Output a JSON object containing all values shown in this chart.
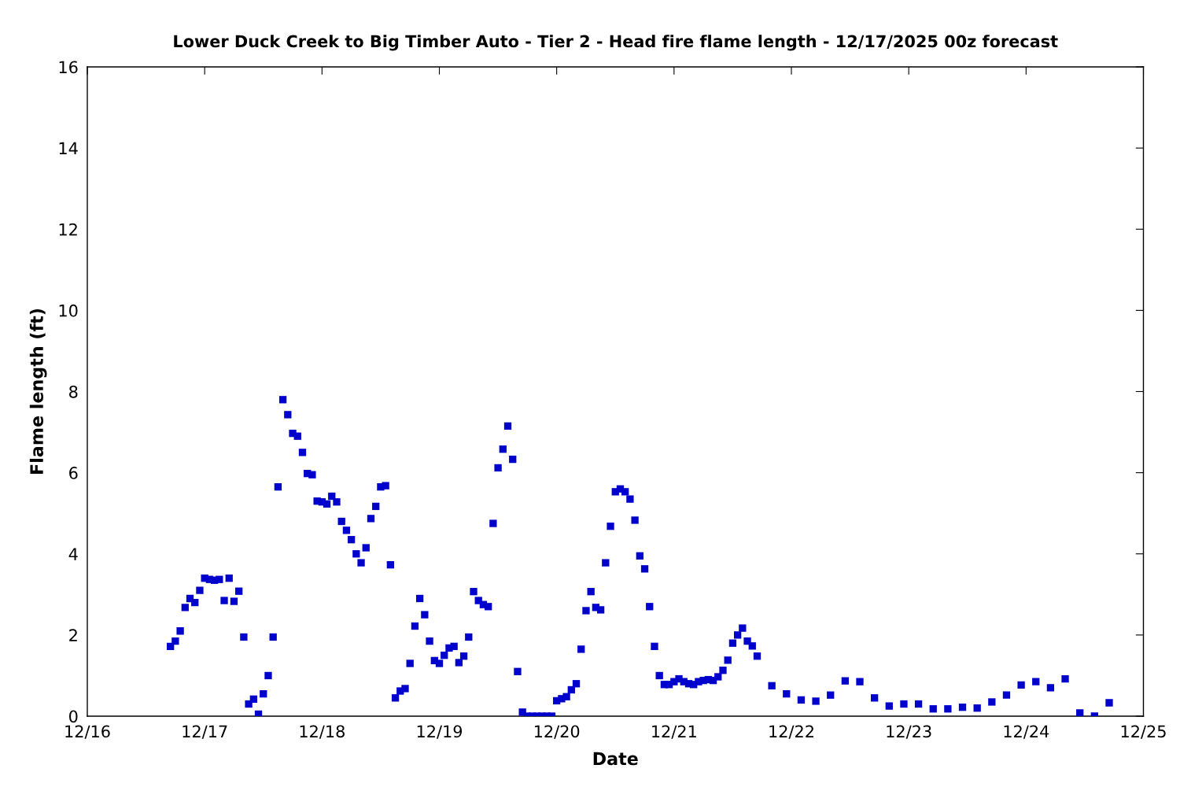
{
  "chart_data": {
    "type": "scatter",
    "title": "Lower Duck Creek to Big Timber Auto - Tier 2 - Head fire flame length - 12/17/2025 00z forecast",
    "xlabel": "Date",
    "ylabel": "Flame length (ft)",
    "marker": "square",
    "grid": false,
    "xlim": [
      "2025-12-16",
      "2025-12-25"
    ],
    "xticks": [
      {
        "value": "2025-12-16",
        "label": "12/16"
      },
      {
        "value": "2025-12-17",
        "label": "12/17"
      },
      {
        "value": "2025-12-18",
        "label": "12/18"
      },
      {
        "value": "2025-12-19",
        "label": "12/19"
      },
      {
        "value": "2025-12-20",
        "label": "12/20"
      },
      {
        "value": "2025-12-21",
        "label": "12/21"
      },
      {
        "value": "2025-12-22",
        "label": "12/22"
      },
      {
        "value": "2025-12-23",
        "label": "12/23"
      },
      {
        "value": "2025-12-24",
        "label": "12/24"
      },
      {
        "value": "2025-12-25",
        "label": "12/25"
      }
    ],
    "ylim": [
      0,
      16
    ],
    "yticks": [
      0,
      2,
      4,
      6,
      8,
      10,
      12,
      14,
      16
    ],
    "series": [
      {
        "color": "#0000cc",
        "x": [
          "2025-12-16T17:00",
          "2025-12-16T18:00",
          "2025-12-16T19:00",
          "2025-12-16T20:00",
          "2025-12-16T21:00",
          "2025-12-16T22:00",
          "2025-12-16T23:00",
          "2025-12-17T00:00",
          "2025-12-17T01:00",
          "2025-12-17T02:00",
          "2025-12-17T03:00",
          "2025-12-17T04:00",
          "2025-12-17T05:00",
          "2025-12-17T06:00",
          "2025-12-17T07:00",
          "2025-12-17T08:00",
          "2025-12-17T09:00",
          "2025-12-17T10:00",
          "2025-12-17T11:00",
          "2025-12-17T12:00",
          "2025-12-17T13:00",
          "2025-12-17T14:00",
          "2025-12-17T15:00",
          "2025-12-17T16:00",
          "2025-12-17T17:00",
          "2025-12-17T18:00",
          "2025-12-17T19:00",
          "2025-12-17T20:00",
          "2025-12-17T21:00",
          "2025-12-17T22:00",
          "2025-12-17T23:00",
          "2025-12-18T00:00",
          "2025-12-18T01:00",
          "2025-12-18T02:00",
          "2025-12-18T03:00",
          "2025-12-18T04:00",
          "2025-12-18T05:00",
          "2025-12-18T06:00",
          "2025-12-18T07:00",
          "2025-12-18T08:00",
          "2025-12-18T09:00",
          "2025-12-18T10:00",
          "2025-12-18T11:00",
          "2025-12-18T12:00",
          "2025-12-18T13:00",
          "2025-12-18T14:00",
          "2025-12-18T15:00",
          "2025-12-18T16:00",
          "2025-12-18T17:00",
          "2025-12-18T18:00",
          "2025-12-18T19:00",
          "2025-12-18T20:00",
          "2025-12-18T21:00",
          "2025-12-18T22:00",
          "2025-12-18T23:00",
          "2025-12-19T00:00",
          "2025-12-19T01:00",
          "2025-12-19T02:00",
          "2025-12-19T03:00",
          "2025-12-19T04:00",
          "2025-12-19T05:00",
          "2025-12-19T06:00",
          "2025-12-19T07:00",
          "2025-12-19T08:00",
          "2025-12-19T09:00",
          "2025-12-19T10:00",
          "2025-12-19T11:00",
          "2025-12-19T12:00",
          "2025-12-19T13:00",
          "2025-12-19T14:00",
          "2025-12-19T15:00",
          "2025-12-19T16:00",
          "2025-12-19T17:00",
          "2025-12-19T18:00",
          "2025-12-19T19:00",
          "2025-12-19T20:00",
          "2025-12-19T21:00",
          "2025-12-19T22:00",
          "2025-12-19T23:00",
          "2025-12-20T00:00",
          "2025-12-20T01:00",
          "2025-12-20T02:00",
          "2025-12-20T03:00",
          "2025-12-20T04:00",
          "2025-12-20T05:00",
          "2025-12-20T06:00",
          "2025-12-20T07:00",
          "2025-12-20T08:00",
          "2025-12-20T09:00",
          "2025-12-20T10:00",
          "2025-12-20T11:00",
          "2025-12-20T12:00",
          "2025-12-20T13:00",
          "2025-12-20T14:00",
          "2025-12-20T15:00",
          "2025-12-20T16:00",
          "2025-12-20T17:00",
          "2025-12-20T18:00",
          "2025-12-20T19:00",
          "2025-12-20T20:00",
          "2025-12-20T21:00",
          "2025-12-20T22:00",
          "2025-12-20T23:00",
          "2025-12-21T00:00",
          "2025-12-21T01:00",
          "2025-12-21T02:00",
          "2025-12-21T03:00",
          "2025-12-21T04:00",
          "2025-12-21T05:00",
          "2025-12-21T06:00",
          "2025-12-21T07:00",
          "2025-12-21T08:00",
          "2025-12-21T09:00",
          "2025-12-21T10:00",
          "2025-12-21T11:00",
          "2025-12-21T12:00",
          "2025-12-21T13:00",
          "2025-12-21T14:00",
          "2025-12-21T15:00",
          "2025-12-21T16:00",
          "2025-12-21T17:00",
          "2025-12-21T20:00",
          "2025-12-21T23:00",
          "2025-12-22T02:00",
          "2025-12-22T05:00",
          "2025-12-22T08:00",
          "2025-12-22T11:00",
          "2025-12-22T14:00",
          "2025-12-22T17:00",
          "2025-12-22T20:00",
          "2025-12-22T23:00",
          "2025-12-23T02:00",
          "2025-12-23T05:00",
          "2025-12-23T08:00",
          "2025-12-23T11:00",
          "2025-12-23T14:00",
          "2025-12-23T17:00",
          "2025-12-23T20:00",
          "2025-12-23T23:00",
          "2025-12-24T02:00",
          "2025-12-24T05:00",
          "2025-12-24T08:00",
          "2025-12-24T11:00",
          "2025-12-24T14:00",
          "2025-12-24T17:00"
        ],
        "values": [
          1.72,
          1.85,
          2.1,
          2.68,
          2.9,
          2.8,
          3.1,
          3.4,
          3.37,
          3.35,
          3.37,
          2.85,
          3.4,
          2.83,
          3.08,
          1.95,
          0.3,
          0.42,
          0.05,
          0.55,
          1.0,
          1.95,
          5.65,
          7.8,
          7.43,
          6.97,
          6.9,
          6.5,
          5.98,
          5.95,
          5.3,
          5.28,
          5.23,
          5.42,
          5.28,
          4.8,
          4.58,
          4.35,
          4.0,
          3.78,
          4.15,
          4.87,
          5.17,
          5.65,
          5.68,
          3.73,
          0.45,
          0.62,
          0.68,
          1.3,
          2.22,
          2.9,
          2.5,
          1.85,
          1.37,
          1.3,
          1.5,
          1.68,
          1.72,
          1.32,
          1.48,
          1.95,
          3.07,
          2.85,
          2.75,
          2.7,
          4.75,
          6.12,
          6.58,
          7.15,
          6.33,
          1.1,
          0.1,
          0,
          0,
          0,
          0,
          0,
          0,
          0.38,
          0.43,
          0.48,
          0.65,
          0.8,
          1.65,
          2.6,
          3.07,
          2.68,
          2.62,
          3.78,
          4.68,
          5.53,
          5.6,
          5.53,
          5.35,
          4.83,
          3.95,
          3.63,
          2.7,
          1.72,
          1.0,
          0.78,
          0.78,
          0.85,
          0.92,
          0.85,
          0.8,
          0.78,
          0.85,
          0.88,
          0.9,
          0.88,
          0.97,
          1.13,
          1.38,
          1.8,
          2.0,
          2.17,
          1.85,
          1.73,
          1.48,
          0.75,
          0.55,
          0.4,
          0.37,
          0.52,
          0.87,
          0.85,
          0.45,
          0.25,
          0.3,
          0.3,
          0.18,
          0.18,
          0.22,
          0.2,
          0.35,
          0.52,
          0.77,
          0.85,
          0.7,
          0.92,
          0.08,
          0.0,
          0.33
        ]
      }
    ]
  }
}
